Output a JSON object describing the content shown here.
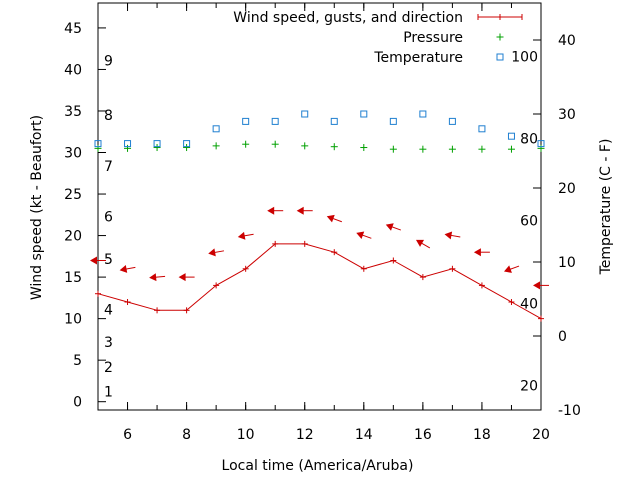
{
  "chart_data": {
    "type": "line",
    "x": [
      5,
      6,
      7,
      8,
      9,
      10,
      11,
      12,
      13,
      14,
      15,
      16,
      17,
      18,
      19,
      20
    ],
    "xlabel": "Local time (America/Aruba)",
    "xlim": [
      5,
      20
    ],
    "xticks": [
      6,
      8,
      10,
      12,
      14,
      16,
      18,
      20
    ],
    "xtick_labels": [
      "6",
      "8",
      "10",
      "12",
      "14",
      "16",
      "18",
      "20"
    ],
    "ylabel": "Wind speed (kt - Beaufort)",
    "ylim": [
      -1,
      48
    ],
    "yticks": [
      0,
      5,
      10,
      15,
      20,
      25,
      30,
      35,
      40,
      45
    ],
    "ytick_labels": [
      "0",
      "5",
      "10",
      "15",
      "20",
      "25",
      "30",
      "35",
      "40",
      "45"
    ],
    "y2label": "Temperature (C - F)",
    "y2lim": [
      -10,
      45
    ],
    "y2ticks": [
      -10,
      0,
      10,
      20,
      30,
      40
    ],
    "y2tick_labels": [
      "-10",
      "0",
      "10",
      "20",
      "30",
      "40"
    ],
    "beaufort_scale": [
      {
        "label": "1",
        "kt": 1.2
      },
      {
        "label": "2",
        "kt": 4.2
      },
      {
        "label": "3",
        "kt": 7.2
      },
      {
        "label": "4",
        "kt": 11.1
      },
      {
        "label": "5",
        "kt": 17.2
      },
      {
        "label": "6",
        "kt": 22.3
      },
      {
        "label": "7",
        "kt": 28.4
      },
      {
        "label": "8",
        "kt": 34.5
      },
      {
        "label": "9",
        "kt": 41.1
      }
    ],
    "fahrenheit_scale": [
      {
        "label": "20",
        "degC": -6.7
      },
      {
        "label": "40",
        "degC": 4.4
      },
      {
        "label": "60",
        "degC": 15.6
      },
      {
        "label": "80",
        "degC": 26.7
      },
      {
        "label": "100",
        "degC": 37.8
      }
    ],
    "series": [
      {
        "name": "Wind speed, gusts, and direction",
        "color": "#cc0000",
        "values": [
          13,
          12,
          11,
          11,
          14,
          16,
          19,
          19,
          18,
          16,
          17,
          15,
          16,
          14,
          12,
          10
        ],
        "gusts": [
          17,
          16,
          15,
          15,
          18,
          20,
          23,
          23,
          22,
          20,
          21,
          19,
          20,
          18,
          16,
          14
        ],
        "direction_deg": [
          90,
          80,
          85,
          90,
          80,
          80,
          90,
          90,
          110,
          110,
          110,
          120,
          100,
          90,
          70,
          90
        ]
      },
      {
        "name": "Pressure",
        "color": "#00a000",
        "values": [
          30.5,
          30.5,
          30.6,
          30.6,
          30.8,
          31.0,
          31.0,
          30.8,
          30.7,
          30.6,
          30.4,
          30.4,
          30.4,
          30.4,
          30.4,
          30.5
        ]
      },
      {
        "name": "Temperature",
        "color": "#1f7fd0",
        "axis": "y2",
        "values": [
          26,
          26,
          26,
          26,
          28,
          29,
          29,
          30,
          29,
          30,
          29,
          30,
          29,
          28,
          27,
          26
        ]
      }
    ]
  }
}
